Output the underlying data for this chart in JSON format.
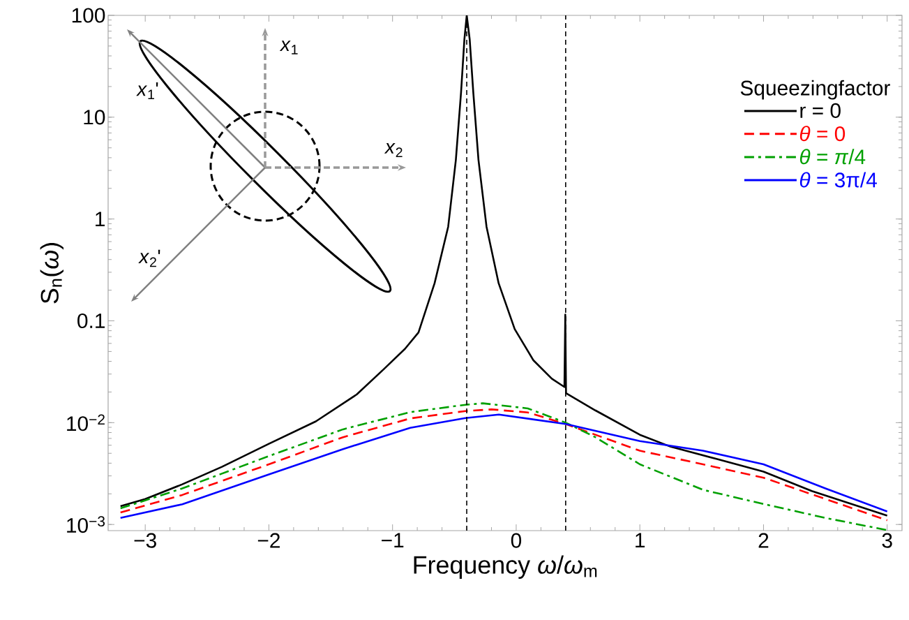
{
  "chart_data": {
    "type": "line",
    "xlabel": "Frequency *ω*/*ω*$_{m}$",
    "ylabel": "S$_{n}$(*ω*)",
    "legend_title": "Squeezingfactor",
    "legend": "top right",
    "log": "y",
    "grid": false,
    "xlim": [
      -3.3,
      3.12
    ],
    "ylim": [
      0.00087,
      100
    ],
    "xticks": [
      {
        "value": -3,
        "label": "−3"
      },
      {
        "value": -2,
        "label": "−2"
      },
      {
        "value": -1,
        "label": "−1"
      },
      0,
      1,
      2,
      3
    ],
    "yticks": [
      {
        "value": 0.001,
        "label": "10$^{−3}$"
      },
      {
        "value": 0.01,
        "label": "10$^{−2}$"
      },
      0.1,
      1,
      10,
      100
    ],
    "ref_lines": [
      {
        "axis": "x",
        "value": -0.4,
        "color": "#000000",
        "line_style": "dashed"
      },
      {
        "axis": "x",
        "value": 0.4,
        "color": "#000000",
        "line_style": "dashed"
      }
    ],
    "annotations": [
      "*x*$_{1}$",
      "*x*$_{2}$",
      "*x*$_{1}$'",
      "*x*$_{2}$'"
    ],
    "series": [
      {
        "name": "r = 0",
        "color": "#000000",
        "line_style": "solid",
        "x": [
          -3.2,
          -3.0,
          -2.7,
          -2.38,
          -2.0,
          -1.62,
          -1.29,
          -1.07,
          -0.9,
          -0.79,
          -0.66,
          -0.55,
          -0.488,
          -0.446,
          -0.419,
          -0.4,
          -0.376,
          -0.347,
          -0.305,
          -0.24,
          -0.142,
          -0.012,
          0.139,
          0.288,
          0.39,
          0.397,
          0.403,
          0.64,
          1.0,
          1.25,
          1.62,
          2.0,
          2.39,
          3.0
        ],
        "values": [
          0.00151,
          0.00178,
          0.00248,
          0.00368,
          0.0062,
          0.0103,
          0.0189,
          0.0336,
          0.053,
          0.077,
          0.234,
          0.84,
          3.8,
          17.5,
          58,
          100,
          58,
          17.5,
          3.8,
          0.84,
          0.234,
          0.083,
          0.041,
          0.027,
          0.0224,
          0.115,
          0.0195,
          0.0132,
          0.0076,
          0.0058,
          0.0044,
          0.0033,
          0.00213,
          0.00122
        ]
      },
      {
        "name": "*θ* =  0",
        "color": "#ff0000",
        "line_style": "dashed",
        "x": [
          -3.2,
          -2.7,
          -2.0,
          -1.4,
          -0.857,
          -0.41,
          -0.2,
          0.094,
          0.4,
          1.0,
          1.51,
          2.0,
          2.5,
          3.0
        ],
        "values": [
          0.00131,
          0.00195,
          0.0039,
          0.0072,
          0.011,
          0.013,
          0.0135,
          0.0126,
          0.0097,
          0.0053,
          0.0039,
          0.00288,
          0.00178,
          0.0011
        ]
      },
      {
        "name": "*θ* = *π*/4",
        "color": "#00a000",
        "line_style": "dashdot",
        "x": [
          -3.2,
          -2.7,
          -2.0,
          -1.4,
          -0.857,
          -0.407,
          -0.27,
          0.094,
          0.4,
          0.64,
          1.0,
          1.51,
          2.0,
          2.5,
          3.0
        ],
        "values": [
          0.00144,
          0.00226,
          0.0047,
          0.0086,
          0.0127,
          0.015,
          0.0155,
          0.0138,
          0.01,
          0.0072,
          0.0039,
          0.00219,
          0.00159,
          0.00116,
          0.00088
        ]
      },
      {
        "name": "*θ* = 3π/4",
        "color": "#0000ff",
        "line_style": "solid",
        "x": [
          -3.2,
          -2.7,
          -2.0,
          -1.4,
          -0.857,
          -0.41,
          -0.14,
          0.4,
          1.0,
          1.51,
          2.0,
          2.5,
          3.0
        ],
        "values": [
          0.00116,
          0.00158,
          0.0031,
          0.0055,
          0.0089,
          0.0111,
          0.012,
          0.0097,
          0.0066,
          0.0053,
          0.0039,
          0.00226,
          0.00134
        ]
      }
    ]
  }
}
